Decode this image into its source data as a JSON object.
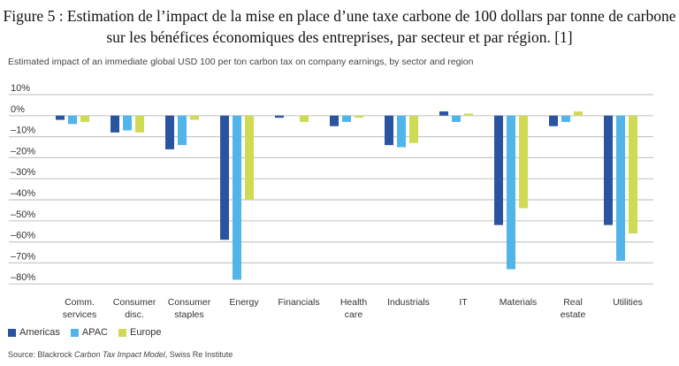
{
  "figure_title": "Figure 5 : Estimation de l’impact de la mise en place d’une taxe carbone de 100 dollars par tonne de carbone sur les bénéfices économiques des entreprises, par secteur et par région. [1]",
  "source": {
    "prefix": "Source: Blackrock ",
    "italic": "Carbon Tax Impact Model",
    "suffix": ", Swiss Re Institute"
  },
  "chart_data": {
    "type": "bar",
    "title": "Estimated impact of an immediate global USD 100 per ton carbon tax on company earnings, by sector and region",
    "xlabel": "",
    "ylabel": "",
    "ylim": [
      -80,
      10
    ],
    "yticks": [
      "10%",
      "0%",
      "–10%",
      "–20%",
      "–30%",
      "–40%",
      "–50%",
      "–60%",
      "–70%",
      "–80%"
    ],
    "grid": true,
    "legend_position": "bottom-left",
    "categories": [
      [
        "Comm.",
        "services"
      ],
      [
        "Consumer",
        "disc."
      ],
      [
        "Consumer",
        "staples"
      ],
      [
        "Energy"
      ],
      [
        "Financials"
      ],
      [
        "Health",
        "care"
      ],
      [
        "Industrials"
      ],
      [
        "IT"
      ],
      [
        "Materials"
      ],
      [
        "Real",
        "estate"
      ],
      [
        "Utilities"
      ]
    ],
    "series": [
      {
        "name": "Americas",
        "color": "#2a54a0",
        "values": [
          -2,
          -8,
          -16,
          -59,
          -1,
          -5,
          -14,
          2,
          -52,
          -5,
          -52
        ]
      },
      {
        "name": "APAC",
        "color": "#52b5ea",
        "values": [
          -4,
          -7,
          -14,
          -78,
          0,
          -3,
          -15,
          -3,
          -73,
          -3,
          -69
        ]
      },
      {
        "name": "Europe",
        "color": "#cfdb55",
        "values": [
          -3,
          -8,
          -2,
          -40,
          -3,
          -1,
          -13,
          1,
          -44,
          2,
          -56
        ]
      }
    ]
  }
}
